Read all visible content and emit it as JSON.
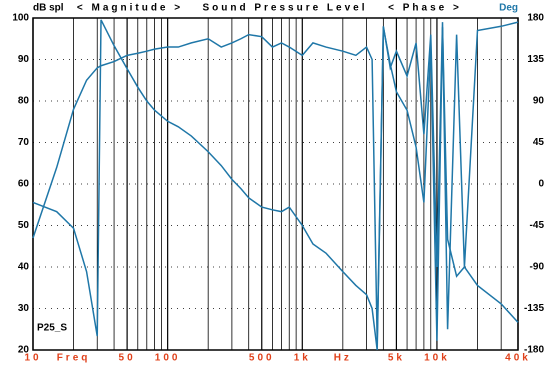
{
  "chart_data": {
    "type": "line",
    "title": "Sound Pressure Level",
    "annotations": [
      "< Magnitude >",
      "< Phase >"
    ],
    "ylabel": "dB spl",
    "y2label": "Deg",
    "xlabel": "Freq",
    "xunit": "Hz",
    "label": "P25_S",
    "log_x": true,
    "grid": true,
    "xlim": [
      10,
      40000
    ],
    "xticks": [
      10,
      50,
      100,
      500,
      {
        "value": 1000,
        "label": "1k"
      },
      {
        "value": 5000,
        "label": "5k"
      },
      {
        "value": 10000,
        "label": "10k"
      },
      {
        "value": 40000,
        "label": "40k"
      }
    ],
    "xminorticks": [
      20,
      30,
      40,
      60,
      70,
      80,
      90,
      200,
      300,
      400,
      600,
      700,
      800,
      900,
      2000,
      3000,
      4000,
      6000,
      7000,
      8000,
      9000,
      20000,
      30000
    ],
    "ylim": [
      20,
      100
    ],
    "yticks": [
      20,
      30,
      40,
      50,
      60,
      70,
      80,
      90,
      100
    ],
    "y2lim": [
      -180,
      180
    ],
    "y2ticks": [
      -180,
      -135,
      -90,
      -45,
      0,
      45,
      90,
      135,
      180
    ],
    "x": [
      10,
      15,
      20,
      25,
      30,
      32,
      40,
      50,
      60,
      70,
      80,
      100,
      120,
      150,
      200,
      250,
      300,
      350,
      400,
      500,
      600,
      700,
      800,
      1000,
      1200,
      1500,
      2000,
      2500,
      3000,
      3300,
      3600,
      4000,
      4500,
      5000,
      6000,
      7000,
      8000,
      9000,
      10000,
      11000,
      12000,
      14000,
      16000,
      20000,
      30000,
      40000
    ],
    "series": [
      {
        "name": "Magnitude",
        "color": "#1f77a8",
        "axis": "y",
        "values": [
          47,
          64,
          78,
          85,
          88,
          88.5,
          89.5,
          91,
          91.5,
          92,
          92.5,
          93,
          93,
          94,
          95,
          93,
          94,
          95,
          96,
          95.5,
          93,
          94,
          93,
          91,
          94,
          93,
          92,
          91,
          93,
          90,
          22,
          98,
          88,
          92,
          86,
          94,
          72,
          96,
          40,
          99,
          25,
          96,
          40,
          97,
          98,
          99
        ]
      },
      {
        "name": "Phase",
        "color": "#1f77a8",
        "axis": "y2",
        "values": [
          -20,
          -30,
          -48,
          -95,
          -165,
          178,
          150,
          125,
          105,
          90,
          80,
          68,
          62,
          52,
          35,
          20,
          5,
          -5,
          -15,
          -25,
          -28,
          -30,
          -25,
          -45,
          -65,
          -75,
          -95,
          -110,
          -120,
          -135,
          -180,
          170,
          130,
          100,
          80,
          40,
          -20,
          150,
          -170,
          170,
          -60,
          -100,
          -90,
          -110,
          -130,
          -150
        ]
      }
    ]
  }
}
